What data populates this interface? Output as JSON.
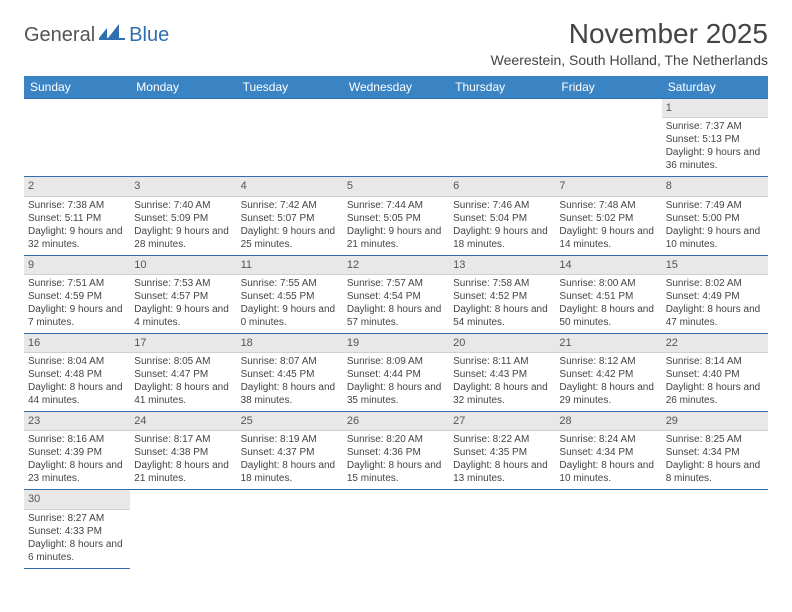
{
  "logo": {
    "text1": "General",
    "text2": "Blue"
  },
  "title": "November 2025",
  "location": "Weerestein, South Holland, The Netherlands",
  "colors": {
    "header_bg": "#3b84c4",
    "accent": "#2f6fb0",
    "daynum_bg": "#e8e8e8",
    "text": "#444444"
  },
  "weekdays": [
    "Sunday",
    "Monday",
    "Tuesday",
    "Wednesday",
    "Thursday",
    "Friday",
    "Saturday"
  ],
  "first_weekday_index": 6,
  "days": [
    {
      "n": 1,
      "sunrise": "7:37 AM",
      "sunset": "5:13 PM",
      "daylight": "9 hours and 36 minutes."
    },
    {
      "n": 2,
      "sunrise": "7:38 AM",
      "sunset": "5:11 PM",
      "daylight": "9 hours and 32 minutes."
    },
    {
      "n": 3,
      "sunrise": "7:40 AM",
      "sunset": "5:09 PM",
      "daylight": "9 hours and 28 minutes."
    },
    {
      "n": 4,
      "sunrise": "7:42 AM",
      "sunset": "5:07 PM",
      "daylight": "9 hours and 25 minutes."
    },
    {
      "n": 5,
      "sunrise": "7:44 AM",
      "sunset": "5:05 PM",
      "daylight": "9 hours and 21 minutes."
    },
    {
      "n": 6,
      "sunrise": "7:46 AM",
      "sunset": "5:04 PM",
      "daylight": "9 hours and 18 minutes."
    },
    {
      "n": 7,
      "sunrise": "7:48 AM",
      "sunset": "5:02 PM",
      "daylight": "9 hours and 14 minutes."
    },
    {
      "n": 8,
      "sunrise": "7:49 AM",
      "sunset": "5:00 PM",
      "daylight": "9 hours and 10 minutes."
    },
    {
      "n": 9,
      "sunrise": "7:51 AM",
      "sunset": "4:59 PM",
      "daylight": "9 hours and 7 minutes."
    },
    {
      "n": 10,
      "sunrise": "7:53 AM",
      "sunset": "4:57 PM",
      "daylight": "9 hours and 4 minutes."
    },
    {
      "n": 11,
      "sunrise": "7:55 AM",
      "sunset": "4:55 PM",
      "daylight": "9 hours and 0 minutes."
    },
    {
      "n": 12,
      "sunrise": "7:57 AM",
      "sunset": "4:54 PM",
      "daylight": "8 hours and 57 minutes."
    },
    {
      "n": 13,
      "sunrise": "7:58 AM",
      "sunset": "4:52 PM",
      "daylight": "8 hours and 54 minutes."
    },
    {
      "n": 14,
      "sunrise": "8:00 AM",
      "sunset": "4:51 PM",
      "daylight": "8 hours and 50 minutes."
    },
    {
      "n": 15,
      "sunrise": "8:02 AM",
      "sunset": "4:49 PM",
      "daylight": "8 hours and 47 minutes."
    },
    {
      "n": 16,
      "sunrise": "8:04 AM",
      "sunset": "4:48 PM",
      "daylight": "8 hours and 44 minutes."
    },
    {
      "n": 17,
      "sunrise": "8:05 AM",
      "sunset": "4:47 PM",
      "daylight": "8 hours and 41 minutes."
    },
    {
      "n": 18,
      "sunrise": "8:07 AM",
      "sunset": "4:45 PM",
      "daylight": "8 hours and 38 minutes."
    },
    {
      "n": 19,
      "sunrise": "8:09 AM",
      "sunset": "4:44 PM",
      "daylight": "8 hours and 35 minutes."
    },
    {
      "n": 20,
      "sunrise": "8:11 AM",
      "sunset": "4:43 PM",
      "daylight": "8 hours and 32 minutes."
    },
    {
      "n": 21,
      "sunrise": "8:12 AM",
      "sunset": "4:42 PM",
      "daylight": "8 hours and 29 minutes."
    },
    {
      "n": 22,
      "sunrise": "8:14 AM",
      "sunset": "4:40 PM",
      "daylight": "8 hours and 26 minutes."
    },
    {
      "n": 23,
      "sunrise": "8:16 AM",
      "sunset": "4:39 PM",
      "daylight": "8 hours and 23 minutes."
    },
    {
      "n": 24,
      "sunrise": "8:17 AM",
      "sunset": "4:38 PM",
      "daylight": "8 hours and 21 minutes."
    },
    {
      "n": 25,
      "sunrise": "8:19 AM",
      "sunset": "4:37 PM",
      "daylight": "8 hours and 18 minutes."
    },
    {
      "n": 26,
      "sunrise": "8:20 AM",
      "sunset": "4:36 PM",
      "daylight": "8 hours and 15 minutes."
    },
    {
      "n": 27,
      "sunrise": "8:22 AM",
      "sunset": "4:35 PM",
      "daylight": "8 hours and 13 minutes."
    },
    {
      "n": 28,
      "sunrise": "8:24 AM",
      "sunset": "4:34 PM",
      "daylight": "8 hours and 10 minutes."
    },
    {
      "n": 29,
      "sunrise": "8:25 AM",
      "sunset": "4:34 PM",
      "daylight": "8 hours and 8 minutes."
    },
    {
      "n": 30,
      "sunrise": "8:27 AM",
      "sunset": "4:33 PM",
      "daylight": "8 hours and 6 minutes."
    }
  ],
  "labels": {
    "sunrise": "Sunrise:",
    "sunset": "Sunset:",
    "daylight": "Daylight:"
  }
}
